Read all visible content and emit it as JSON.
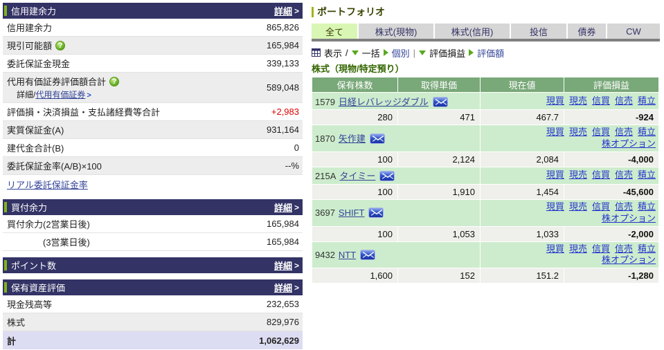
{
  "icons": {
    "chevron": ">",
    "help": "?",
    "slash": "/",
    "pipe": "|"
  },
  "colors": {
    "header_navy": "#333366",
    "accent_green": "#7fb41c",
    "table_header_green": "#79a879",
    "row_green": "#cdeccd",
    "loss_blue": "#0000cc",
    "gain_red": "#dd0000",
    "link_blue": "#2233cc",
    "total_row_lavender": "#dcdcf2",
    "active_tab_green": "#d9f6b4"
  },
  "left": {
    "sections": [
      {
        "id": "margin-power",
        "title": "信用建余力",
        "detail_label": "詳細",
        "rows": [
          {
            "label": "信用建余力",
            "value": "865,826"
          },
          {
            "label": "現引可能額",
            "help": true,
            "value": "165,984",
            "shaded": true
          },
          {
            "label": "委託保証金現金",
            "value": "339,133"
          },
          {
            "label": "代用有価証券評価額合計",
            "help": true,
            "value": "589,048",
            "shaded": true,
            "sub_prefix": "詳細/",
            "sub_link": "代用有価証券"
          },
          {
            "label": "評価損・決済損益・支払諸経費等合計",
            "value": "+2,983",
            "value_color": "red"
          },
          {
            "label": "実質保証金(A)",
            "value": "931,164",
            "shaded": true
          },
          {
            "label": "建代金合計(B)",
            "value": "0"
          },
          {
            "label": "委託保証金率(A/B)×100",
            "value": "--%",
            "shaded": true
          },
          {
            "label": "リアル委託保証金率",
            "label_is_link": true,
            "value": ""
          }
        ]
      },
      {
        "id": "buying-power",
        "title": "買付余力",
        "detail_label": "詳細",
        "rows": [
          {
            "label": "買付余力(2営業日後)",
            "value": "165,984"
          },
          {
            "label": "(3営業日後)",
            "indent": true,
            "value": "165,984"
          }
        ]
      },
      {
        "id": "points",
        "title": "ポイント数",
        "detail_label": "詳細",
        "rows": []
      },
      {
        "id": "assets",
        "title": "保有資産評価",
        "detail_label": "詳細",
        "rows": [
          {
            "label": "現金残高等",
            "value": "232,653"
          },
          {
            "label": "株式",
            "value": "829,976",
            "shaded": true
          },
          {
            "label": "計",
            "value": "1,062,629",
            "total": true
          }
        ]
      }
    ]
  },
  "portfolio": {
    "title": "ポートフォリオ",
    "tabs": [
      {
        "label": "全て",
        "active": true
      },
      {
        "label": "株式(現物)",
        "active": false
      },
      {
        "label": "株式(信用)",
        "active": false
      },
      {
        "label": "投信",
        "active": false
      },
      {
        "label": "債券",
        "active": false
      },
      {
        "label": "CW",
        "active": false
      }
    ],
    "toolbar": {
      "display_label": "表示",
      "batch_label": "一括",
      "individual_label": "個別",
      "pl_label": "評価損益",
      "value_label": "評価額"
    },
    "section_title": "株式（現物/特定預り）",
    "table": {
      "headers": [
        "保有株数",
        "取得単価",
        "現在値",
        "評価損益"
      ],
      "action_links": [
        "現買",
        "現売",
        "信買",
        "信売",
        "積立"
      ],
      "action_link_names": [
        "cash-buy",
        "cash-sell",
        "margin-buy",
        "margin-sell",
        "accumulate"
      ],
      "option_link_label": "株オプション",
      "holdings": [
        {
          "code": "1579",
          "name": "日経レバレッジダブル",
          "has_option_link": false,
          "qty": "280",
          "avg_cost": "471",
          "current_price": "467.7",
          "pl": "-924"
        },
        {
          "code": "1870",
          "name": "矢作建",
          "has_option_link": true,
          "qty": "100",
          "avg_cost": "2,124",
          "current_price": "2,084",
          "pl": "-4,000"
        },
        {
          "code": "215A",
          "name": "タイミー",
          "has_option_link": false,
          "qty": "100",
          "avg_cost": "1,910",
          "current_price": "1,454",
          "pl": "-45,600"
        },
        {
          "code": "3697",
          "name": "SHIFT",
          "has_option_link": true,
          "qty": "100",
          "avg_cost": "1,053",
          "current_price": "1,033",
          "pl": "-2,000"
        },
        {
          "code": "9432",
          "name": "NTT",
          "has_option_link": true,
          "qty": "1,600",
          "avg_cost": "152",
          "current_price": "151.2",
          "pl": "-1,280"
        }
      ]
    }
  }
}
